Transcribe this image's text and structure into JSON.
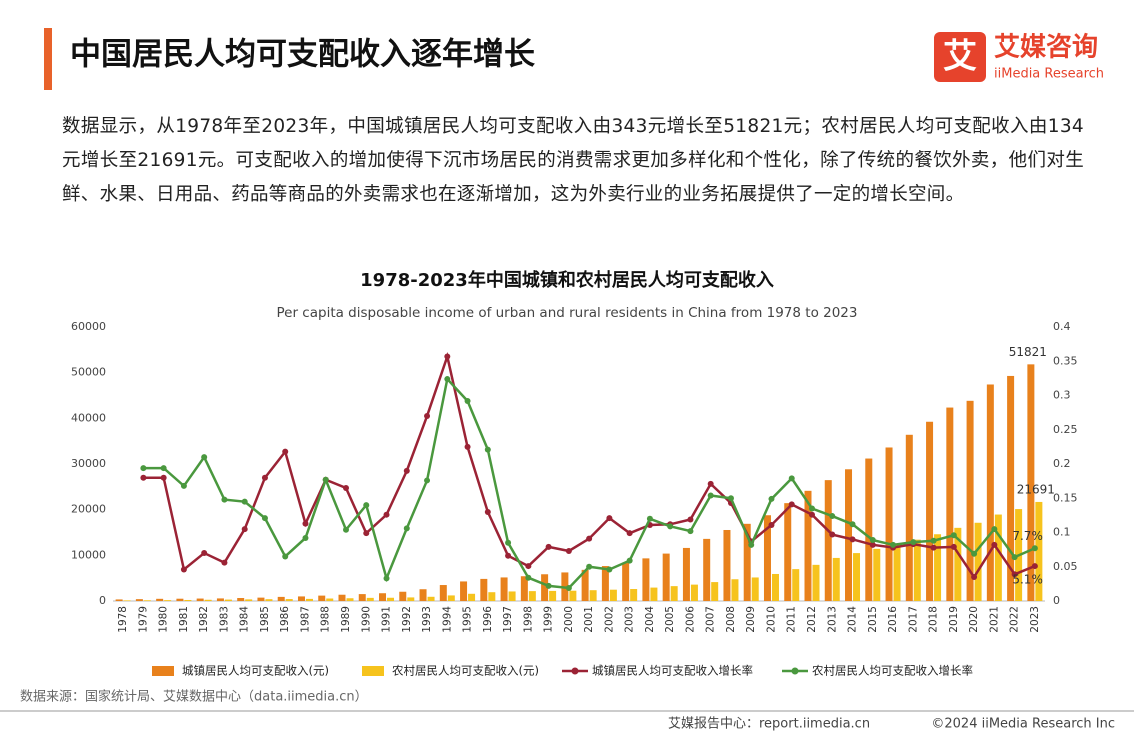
{
  "header": {
    "title": "中国居民人均可支配收入逐年增长"
  },
  "logo": {
    "icon": "艾",
    "name": "艾媒咨询",
    "en": "iiMedia Research"
  },
  "paragraph": "数据显示，从1978年至2023年，中国城镇居民人均可支配收入由343元增长至51821元；农村居民人均可支配收入由134元增长至21691元。可支配收入的增加使得下沉市场居民的消费需求更加多样化和个性化，除了传统的餐饮外卖，他们对生鲜、水果、日用品、药品等商品的外卖需求也在逐渐增加，这为外卖行业的业务拓展提供了一定的增长空间。",
  "chart_data": {
    "type": "bar-line",
    "title": "1978-2023年中国城镇和农村居民人均可支配收入",
    "subtitle": "Per capita disposable income of urban and rural residents in China from 1978 to 2023",
    "categories": [
      "1978",
      "1979",
      "1980",
      "1981",
      "1982",
      "1983",
      "1984",
      "1985",
      "1986",
      "1987",
      "1988",
      "1989",
      "1990",
      "1991",
      "1992",
      "1993",
      "1994",
      "1995",
      "1996",
      "1997",
      "1998",
      "1999",
      "2000",
      "2001",
      "2002",
      "2003",
      "2004",
      "2005",
      "2006",
      "2007",
      "2008",
      "2009",
      "2010",
      "2011",
      "2012",
      "2013",
      "2014",
      "2015",
      "2016",
      "2017",
      "2018",
      "2019",
      "2020",
      "2021",
      "2022",
      "2023"
    ],
    "series": [
      {
        "name": "城镇居民人均可支配收入(元)",
        "type": "bar",
        "color": "#e8811c",
        "values": [
          343,
          405,
          478,
          500,
          535,
          565,
          652,
          739,
          900,
          1002,
          1180,
          1374,
          1510,
          1701,
          2027,
          2577,
          3496,
          4283,
          4839,
          5160,
          5425,
          5854,
          6256,
          6824,
          7652,
          8406,
          9335,
          10382,
          11620,
          13603,
          15549,
          16901,
          18779,
          21427,
          24127,
          26467,
          28844,
          31195,
          33616,
          36396,
          39251,
          42359,
          43834,
          47412,
          49283,
          51821
        ]
      },
      {
        "name": "农村居民人均可支配收入(元)",
        "type": "bar",
        "color": "#f6c31d",
        "values": [
          134,
          160,
          191,
          223,
          270,
          310,
          355,
          398,
          424,
          463,
          545,
          602,
          686,
          709,
          784,
          922,
          1221,
          1578,
          1926,
          2090,
          2162,
          2210,
          2253,
          2366,
          2476,
          2622,
          2936,
          3255,
          3587,
          4140,
          4761,
          5153,
          5919,
          6977,
          7917,
          9430,
          10489,
          11422,
          12363,
          13432,
          14617,
          16021,
          17131,
          18931,
          20133,
          21691
        ]
      },
      {
        "name": "城镇居民人均可支配收入增长率",
        "type": "line",
        "axis": "y2",
        "color": "#9b2335",
        "values": [
          null,
          0.18,
          0.18,
          0.046,
          0.07,
          0.056,
          0.105,
          0.18,
          0.218,
          0.113,
          0.177,
          0.165,
          0.099,
          0.126,
          0.19,
          0.27,
          0.357,
          0.225,
          0.13,
          0.066,
          0.051,
          0.079,
          0.073,
          0.091,
          0.121,
          0.099,
          0.111,
          0.112,
          0.119,
          0.171,
          0.143,
          0.087,
          0.111,
          0.141,
          0.126,
          0.097,
          0.09,
          0.082,
          0.078,
          0.083,
          0.078,
          0.079,
          0.035,
          0.082,
          0.039,
          0.051
        ],
        "value_labels": [
          null,
          null,
          null,
          null,
          null,
          null,
          null,
          null,
          null,
          null,
          null,
          null,
          null,
          null,
          null,
          null,
          null,
          null,
          null,
          null,
          null,
          null,
          null,
          null,
          null,
          null,
          null,
          null,
          null,
          null,
          null,
          null,
          null,
          null,
          null,
          null,
          null,
          null,
          null,
          null,
          null,
          null,
          null,
          null,
          null,
          "5.1%"
        ]
      },
      {
        "name": "农村居民人均可支配收入增长率",
        "type": "line",
        "axis": "y2",
        "color": "#4a983e",
        "values": [
          null,
          0.194,
          0.194,
          0.168,
          0.21,
          0.148,
          0.145,
          0.121,
          0.065,
          0.092,
          0.177,
          0.104,
          0.14,
          0.033,
          0.106,
          0.176,
          0.324,
          0.292,
          0.221,
          0.085,
          0.034,
          0.022,
          0.019,
          0.05,
          0.046,
          0.059,
          0.12,
          0.109,
          0.102,
          0.154,
          0.15,
          0.082,
          0.149,
          0.179,
          0.135,
          0.124,
          0.112,
          0.089,
          0.082,
          0.086,
          0.088,
          0.096,
          0.069,
          0.105,
          0.064,
          0.077
        ],
        "value_labels": [
          null,
          null,
          null,
          null,
          null,
          null,
          null,
          null,
          null,
          null,
          null,
          null,
          null,
          null,
          null,
          null,
          null,
          null,
          null,
          null,
          null,
          null,
          null,
          null,
          null,
          null,
          null,
          null,
          null,
          null,
          null,
          null,
          null,
          null,
          null,
          null,
          null,
          null,
          null,
          null,
          null,
          null,
          null,
          null,
          null,
          "7.7%"
        ]
      }
    ],
    "ylim": [
      0,
      60000
    ],
    "yticks": [
      0,
      10000,
      20000,
      30000,
      40000,
      50000,
      60000
    ],
    "y2lim": [
      0,
      0.4
    ],
    "y2ticks": [
      0,
      0.05,
      0.1,
      0.15,
      0.2,
      0.25,
      0.3,
      0.35,
      0.4
    ],
    "legend": "bottom"
  },
  "source": "数据来源：国家统计局、艾媒数据中心（data.iimedia.cn）",
  "footer": {
    "left": "艾媒报告中心：report.iimedia.cn",
    "right": "©2024  iiMedia Research  Inc"
  }
}
